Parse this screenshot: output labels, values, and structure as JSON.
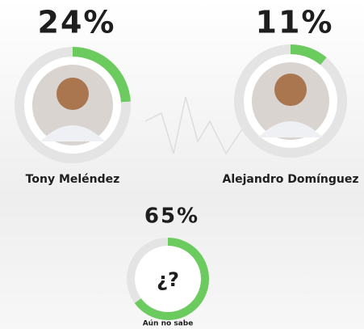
{
  "chart_data": [
    {
      "type": "donut",
      "categories": [
        "Tony Meléndez"
      ],
      "values": [
        24
      ],
      "value_labels": [
        "24%"
      ],
      "color": "#6ccb5f",
      "track_color": "#e4e4e4"
    },
    {
      "type": "donut",
      "categories": [
        "Alejandro Domínguez"
      ],
      "values": [
        11
      ],
      "value_labels": [
        "11%"
      ],
      "color": "#6ccb5f",
      "track_color": "#e4e4e4"
    },
    {
      "type": "donut",
      "categories": [
        "Aún no sabe"
      ],
      "values": [
        65
      ],
      "value_labels": [
        "65%"
      ],
      "center_label": "¿?",
      "color": "#6ccb5f",
      "track_color": "#e4e4e4"
    }
  ]
}
